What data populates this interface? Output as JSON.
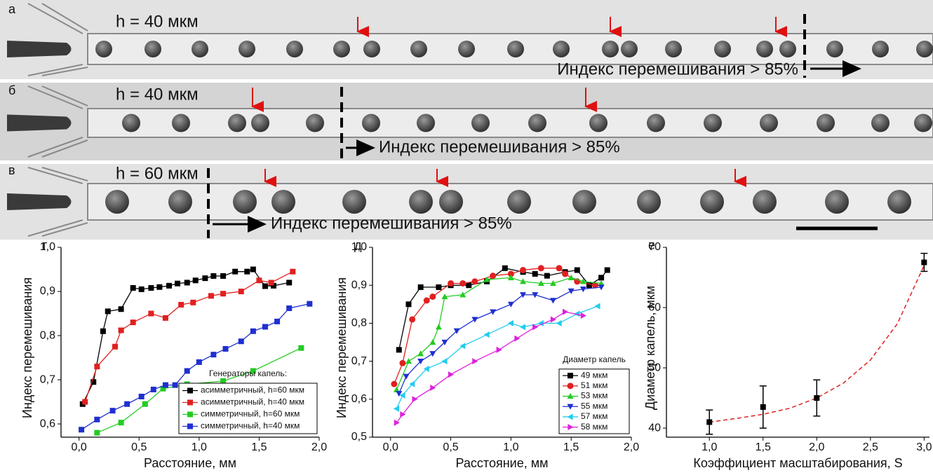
{
  "images": [
    {
      "panel_label": "а",
      "height_label": "h = 40 мкм",
      "annotation": "Индекс перемешивания > 85%"
    },
    {
      "panel_label": "б",
      "height_label": "h = 40 мкм",
      "annotation": "Индекс перемешивания  > 85%"
    },
    {
      "panel_label": "в",
      "height_label": "h = 60 мкм",
      "annotation": "Индекс перемешивания > 85%"
    }
  ],
  "chart_data": [
    {
      "type": "line",
      "panel_label": "г",
      "x_label": "Расстояние, мм",
      "y_label": "Индекс перемешивания",
      "xlim": [
        -0.15,
        2.0
      ],
      "ylim": [
        0.57,
        1.0
      ],
      "xticks": [
        {
          "value": 0,
          "label": "0,0"
        },
        {
          "value": 0.5,
          "label": "0,5"
        },
        {
          "value": 1,
          "label": "1,0"
        },
        {
          "value": 1.5,
          "label": "1,5"
        },
        {
          "value": 2,
          "label": "2,0"
        }
      ],
      "yticks": [
        {
          "value": 0.6,
          "label": "0,6"
        },
        {
          "value": 0.7,
          "label": "0,7"
        },
        {
          "value": 0.8,
          "label": "0,8"
        },
        {
          "value": 0.9,
          "label": "0,9"
        },
        {
          "value": 1,
          "label": "1,0"
        }
      ],
      "legend": "lower right",
      "legend_title": "Генераторы капель:",
      "series": [
        {
          "name": "асимметричный, h=60 мкм",
          "color": "#000000",
          "marker": "square",
          "x": [
            0.03,
            0.12,
            0.2,
            0.24,
            0.35,
            0.45,
            0.52,
            0.6,
            0.67,
            0.75,
            0.82,
            0.9,
            0.97,
            1.05,
            1.12,
            1.2,
            1.3,
            1.4,
            1.45,
            1.55,
            1.62,
            1.75
          ],
          "values": [
            0.645,
            0.695,
            0.81,
            0.855,
            0.86,
            0.908,
            0.905,
            0.908,
            0.91,
            0.913,
            0.918,
            0.92,
            0.925,
            0.93,
            0.935,
            0.935,
            0.945,
            0.945,
            0.95,
            0.912,
            0.913,
            0.92
          ]
        },
        {
          "name": "асимметричный, h=40 мкм",
          "color": "#e02020",
          "marker": "square",
          "x": [
            0.05,
            0.15,
            0.3,
            0.35,
            0.45,
            0.6,
            0.72,
            0.85,
            0.95,
            1.1,
            1.2,
            1.35,
            1.5,
            1.6,
            1.78
          ],
          "values": [
            0.65,
            0.73,
            0.775,
            0.812,
            0.83,
            0.85,
            0.84,
            0.87,
            0.875,
            0.89,
            0.895,
            0.9,
            0.925,
            0.92,
            0.945
          ]
        },
        {
          "name": "симметричный, h=60 мкм",
          "color": "#22cc22",
          "marker": "square",
          "x": [
            0.15,
            0.35,
            0.55,
            0.7,
            0.9,
            1.2,
            1.45,
            1.85
          ],
          "values": [
            0.58,
            0.603,
            0.645,
            0.68,
            0.69,
            0.697,
            0.72,
            0.772
          ]
        },
        {
          "name": "симметричный, h=40 мкм",
          "color": "#1f2fd0",
          "marker": "square",
          "x": [
            0.02,
            0.15,
            0.28,
            0.4,
            0.52,
            0.62,
            0.72,
            0.8,
            0.9,
            1.0,
            1.12,
            1.22,
            1.35,
            1.45,
            1.55,
            1.65,
            1.75,
            1.92
          ],
          "values": [
            0.587,
            0.61,
            0.63,
            0.645,
            0.662,
            0.678,
            0.688,
            0.688,
            0.72,
            0.74,
            0.757,
            0.77,
            0.787,
            0.81,
            0.82,
            0.832,
            0.862,
            0.872
          ]
        }
      ]
    },
    {
      "type": "line",
      "panel_label": "д",
      "x_label": "Расстояние, мм",
      "y_label": "Индекс перемешивания",
      "xlim": [
        -0.15,
        2.0
      ],
      "ylim": [
        0.5,
        1.0
      ],
      "xticks": [
        {
          "value": 0,
          "label": "0,0"
        },
        {
          "value": 0.5,
          "label": "0,5"
        },
        {
          "value": 1,
          "label": "1,0"
        },
        {
          "value": 1.5,
          "label": "1,5"
        },
        {
          "value": 2,
          "label": "2,0"
        }
      ],
      "yticks": [
        {
          "value": 0.5,
          "label": "0,5"
        },
        {
          "value": 0.6,
          "label": "0,6"
        },
        {
          "value": 0.7,
          "label": "0,7"
        },
        {
          "value": 0.8,
          "label": "0,8"
        },
        {
          "value": 0.9,
          "label": "0,9"
        },
        {
          "value": 1,
          "label": "1,0"
        }
      ],
      "legend": "lower right",
      "legend_title": "Диаметр капель",
      "series": [
        {
          "name": "49 мкм",
          "color": "#000000",
          "marker": "square",
          "x": [
            0.07,
            0.15,
            0.25,
            0.4,
            0.5,
            0.65,
            0.8,
            0.95,
            1.1,
            1.2,
            1.3,
            1.45,
            1.55,
            1.65,
            1.75,
            1.8
          ],
          "values": [
            0.73,
            0.85,
            0.895,
            0.895,
            0.9,
            0.9,
            0.91,
            0.945,
            0.935,
            0.93,
            0.925,
            0.935,
            0.94,
            0.9,
            0.92,
            0.94
          ]
        },
        {
          "name": "51 мкм",
          "color": "#e02020",
          "marker": "circle",
          "x": [
            0.03,
            0.1,
            0.18,
            0.3,
            0.35,
            0.5,
            0.6,
            0.7,
            0.85,
            1.0,
            1.1,
            1.25,
            1.4,
            1.45,
            1.55,
            1.7
          ],
          "values": [
            0.64,
            0.695,
            0.81,
            0.86,
            0.87,
            0.905,
            0.905,
            0.91,
            0.925,
            0.93,
            0.94,
            0.945,
            0.945,
            0.93,
            0.91,
            0.9
          ]
        },
        {
          "name": "53 мкм",
          "color": "#22cc22",
          "marker": "up",
          "x": [
            0.05,
            0.15,
            0.25,
            0.35,
            0.4,
            0.45,
            0.6,
            0.8,
            1.0,
            1.1,
            1.25,
            1.35,
            1.5,
            1.6,
            1.75
          ],
          "values": [
            0.625,
            0.7,
            0.72,
            0.75,
            0.79,
            0.87,
            0.875,
            0.915,
            0.92,
            0.91,
            0.905,
            0.905,
            0.92,
            0.91,
            0.905
          ]
        },
        {
          "name": "55 мкм",
          "color": "#1f2fd0",
          "marker": "down",
          "x": [
            0.07,
            0.13,
            0.25,
            0.35,
            0.45,
            0.55,
            0.7,
            0.85,
            1.0,
            1.1,
            1.2,
            1.35,
            1.5,
            1.6,
            1.75
          ],
          "values": [
            0.615,
            0.66,
            0.7,
            0.72,
            0.75,
            0.78,
            0.81,
            0.83,
            0.85,
            0.875,
            0.875,
            0.86,
            0.885,
            0.89,
            0.895
          ]
        },
        {
          "name": "57 мкм",
          "color": "#22ccee",
          "marker": "left",
          "x": [
            0.05,
            0.1,
            0.18,
            0.3,
            0.45,
            0.6,
            0.8,
            1.0,
            1.1,
            1.25,
            1.4,
            1.55,
            1.72
          ],
          "values": [
            0.575,
            0.61,
            0.64,
            0.68,
            0.7,
            0.74,
            0.77,
            0.8,
            0.79,
            0.8,
            0.8,
            0.825,
            0.845
          ]
        },
        {
          "name": "58 мкм",
          "color": "#dd22dd",
          "marker": "right",
          "x": [
            0.05,
            0.1,
            0.2,
            0.35,
            0.5,
            0.7,
            0.9,
            1.05,
            1.2,
            1.35,
            1.45,
            1.6
          ],
          "values": [
            0.538,
            0.56,
            0.6,
            0.63,
            0.665,
            0.7,
            0.73,
            0.76,
            0.79,
            0.81,
            0.83,
            0.82
          ]
        }
      ]
    },
    {
      "type": "errorbar",
      "panel_label": "е",
      "x_label": "Коэффициент масштабирования, S",
      "y_label": "Диаметр капель, мкм",
      "xlim": [
        0.6,
        3.05
      ],
      "ylim": [
        38.5,
        70
      ],
      "xticks": [
        {
          "value": 1,
          "label": "1,0"
        },
        {
          "value": 1.5,
          "label": "1,5"
        },
        {
          "value": 2,
          "label": "2,0"
        },
        {
          "value": 2.5,
          "label": "2,5"
        },
        {
          "value": 3,
          "label": "3,0"
        }
      ],
      "yticks": [
        40,
        50,
        60,
        70
      ],
      "color": "#000000",
      "x": [
        1,
        1.5,
        2,
        3
      ],
      "values": [
        41,
        43.5,
        45,
        67.5
      ],
      "errors": [
        2,
        3.5,
        3,
        1.5
      ],
      "fit": {
        "color": "#e02020",
        "x": [
          1,
          1.25,
          1.5,
          1.75,
          2,
          2.25,
          2.5,
          2.75,
          3
        ],
        "values": [
          41,
          41.6,
          42.3,
          43.3,
          45,
          47.5,
          51.3,
          57.3,
          67
        ]
      }
    }
  ]
}
